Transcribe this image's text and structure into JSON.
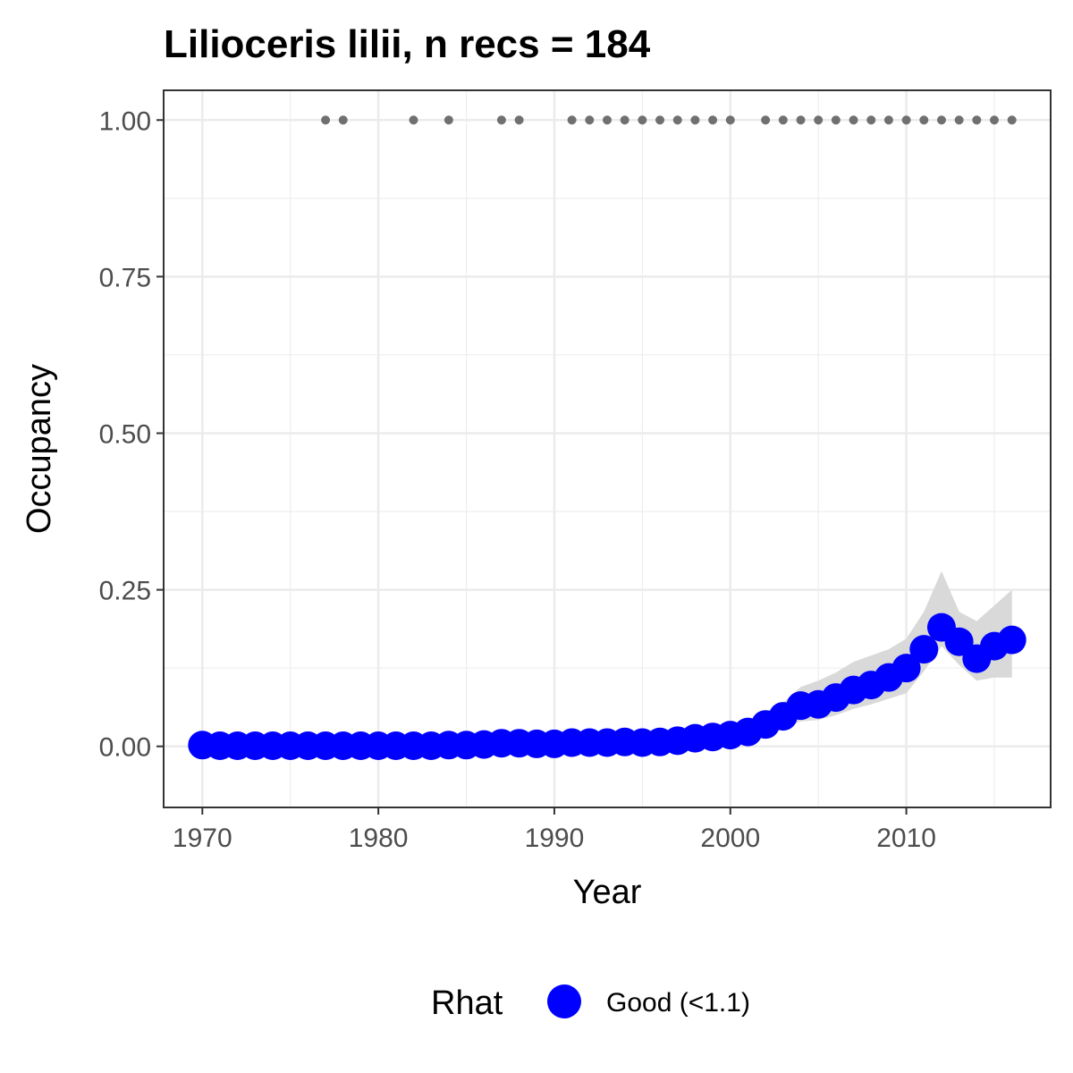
{
  "chart_data": {
    "type": "line",
    "title": "Lilioceris lilii, n recs = 184",
    "xlabel": "Year",
    "ylabel": "Occupancy",
    "xlim": [
      1967.8,
      2018.2
    ],
    "ylim": [
      -0.0975,
      1.0475
    ],
    "x_ticks": [
      1970,
      1980,
      1990,
      2000,
      2010
    ],
    "x_tick_labels": [
      "1970",
      "1980",
      "1990",
      "2000",
      "2010"
    ],
    "y_ticks": [
      0,
      0.25,
      0.5,
      0.75,
      1.0
    ],
    "y_tick_labels": [
      "0.00",
      "0.25",
      "0.50",
      "0.75",
      "1.00"
    ],
    "grid": true,
    "legend": {
      "title": "Rhat",
      "position": "bottom",
      "entries": [
        {
          "label": "Good (<1.1)",
          "color": "#0000ff"
        }
      ]
    },
    "series": [
      {
        "name": "Good (<1.1)",
        "color": "#0000ff",
        "x": [
          1970,
          1971,
          1972,
          1973,
          1974,
          1975,
          1976,
          1977,
          1978,
          1979,
          1980,
          1981,
          1982,
          1983,
          1984,
          1985,
          1986,
          1987,
          1988,
          1989,
          1990,
          1991,
          1992,
          1993,
          1994,
          1995,
          1996,
          1997,
          1998,
          1999,
          2000,
          2001,
          2002,
          2003,
          2004,
          2005,
          2006,
          2007,
          2008,
          2009,
          2010,
          2011,
          2012,
          2013,
          2014,
          2015,
          2016
        ],
        "y": [
          0.002,
          0.001,
          0.001,
          0.001,
          0.001,
          0.001,
          0.001,
          0.001,
          0.001,
          0.001,
          0.001,
          0.001,
          0.001,
          0.001,
          0.002,
          0.002,
          0.003,
          0.005,
          0.005,
          0.004,
          0.004,
          0.006,
          0.006,
          0.006,
          0.007,
          0.006,
          0.007,
          0.009,
          0.013,
          0.015,
          0.018,
          0.023,
          0.035,
          0.048,
          0.065,
          0.067,
          0.078,
          0.09,
          0.098,
          0.11,
          0.125,
          0.155,
          0.19,
          0.167,
          0.14,
          0.16,
          0.17
        ],
        "lower": [
          0.0,
          0.0,
          0.0,
          0.0,
          0.0,
          0.0,
          0.0,
          0.0,
          0.0,
          0.0,
          0.0,
          0.0,
          0.0,
          0.0,
          0.0,
          0.0,
          0.0,
          0.0,
          0.0,
          0.0,
          0.0,
          0.0,
          0.0,
          0.0,
          0.0,
          0.0,
          0.0,
          0.001,
          0.004,
          0.006,
          0.008,
          0.012,
          0.02,
          0.03,
          0.04,
          0.042,
          0.05,
          0.06,
          0.067,
          0.076,
          0.085,
          0.12,
          0.16,
          0.13,
          0.105,
          0.11,
          0.11
        ],
        "upper": [
          0.006,
          0.005,
          0.005,
          0.005,
          0.005,
          0.005,
          0.005,
          0.005,
          0.005,
          0.005,
          0.005,
          0.005,
          0.005,
          0.005,
          0.006,
          0.006,
          0.008,
          0.011,
          0.011,
          0.01,
          0.01,
          0.012,
          0.012,
          0.012,
          0.013,
          0.012,
          0.014,
          0.018,
          0.024,
          0.027,
          0.031,
          0.038,
          0.055,
          0.07,
          0.095,
          0.105,
          0.118,
          0.135,
          0.145,
          0.155,
          0.172,
          0.215,
          0.28,
          0.215,
          0.2,
          0.225,
          0.25
        ]
      }
    ],
    "records": {
      "color": "#707070",
      "x": [
        1977,
        1978,
        1982,
        1984,
        1987,
        1988,
        1991,
        1992,
        1993,
        1994,
        1995,
        1996,
        1997,
        1998,
        1999,
        2000,
        2002,
        2003,
        2004,
        2005,
        2006,
        2007,
        2008,
        2009,
        2010,
        2011,
        2012,
        2013,
        2014,
        2015,
        2016
      ],
      "y": 1.0
    }
  }
}
